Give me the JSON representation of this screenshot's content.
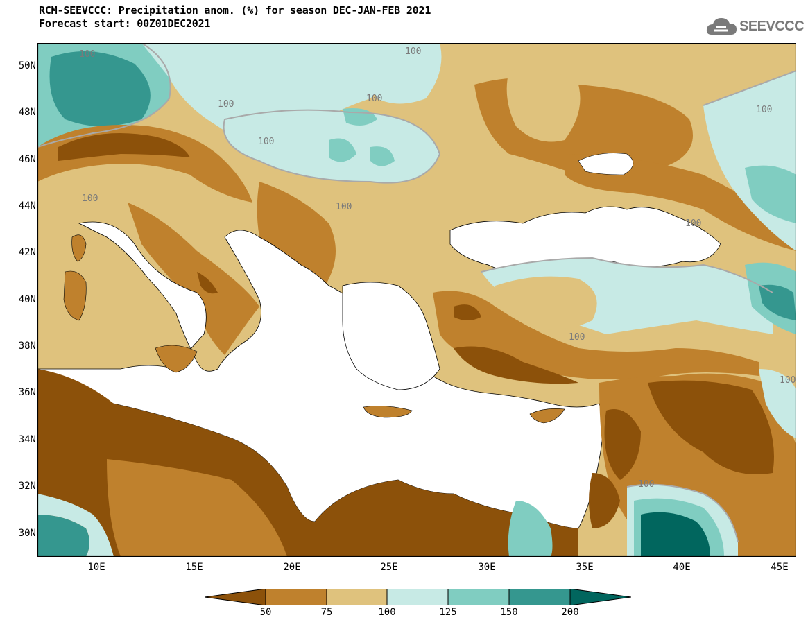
{
  "header": {
    "title_line1": "RCM-SEEVCCC: Precipitation anom. (%) for season DEC-JAN-FEB 2021",
    "title_line2": "Forecast start: 00Z01DEC2021",
    "logo_text": "SEEVCCC",
    "logo_icon": "cloud-icon"
  },
  "map": {
    "latitude_labels": [
      "50N",
      "48N",
      "46N",
      "44N",
      "42N",
      "40N",
      "38N",
      "36N",
      "34N",
      "32N",
      "30N"
    ],
    "longitude_labels": [
      "10E",
      "15E",
      "20E",
      "25E",
      "30E",
      "35E",
      "40E",
      "45E"
    ],
    "contour_labels": [
      "100",
      "100",
      "100",
      "100",
      "100",
      "100",
      "100",
      "100",
      "100",
      "100",
      "100",
      "100"
    ],
    "colors": {
      "dry_strong": "#8c510a",
      "dry": "#bf812d",
      "dry_light": "#dfc27d",
      "wet_light": "#c7eae5",
      "wet": "#80cdc1",
      "wet_strong": "#35978f",
      "wet_extreme": "#01665e",
      "sea": "#ffffff",
      "contour_100": "#a9a9a9"
    }
  },
  "colorbar": {
    "labels": [
      "50",
      "75",
      "100",
      "125",
      "150",
      "200"
    ],
    "colors": [
      "#8c510a",
      "#bf812d",
      "#dfc27d",
      "#c7eae5",
      "#80cdc1",
      "#35978f",
      "#01665e"
    ]
  }
}
